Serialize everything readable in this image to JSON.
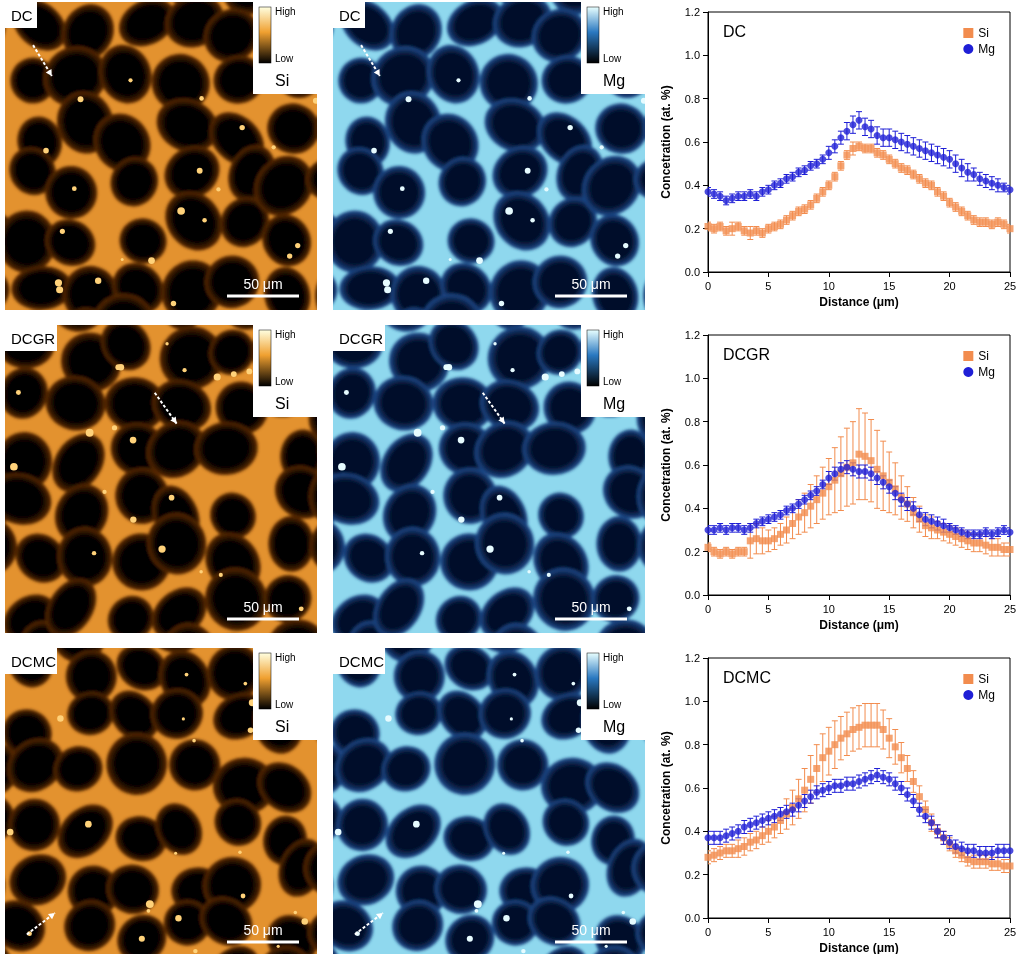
{
  "maps": [
    {
      "sample": "DC",
      "element": "Si",
      "colorbar": [
        "High",
        "Low"
      ],
      "scale_bar": "50 μm"
    },
    {
      "sample": "DC",
      "element": "Mg",
      "colorbar": [
        "High",
        "Low"
      ],
      "scale_bar": "50 μm"
    },
    {
      "sample": "DCGR",
      "element": "Si",
      "colorbar": [
        "High",
        "Low"
      ],
      "scale_bar": "50 μm"
    },
    {
      "sample": "DCGR",
      "element": "Mg",
      "colorbar": [
        "High",
        "Low"
      ],
      "scale_bar": "50 μm"
    },
    {
      "sample": "DCMC",
      "element": "Si",
      "colorbar": [
        "High",
        "Low"
      ],
      "scale_bar": "50 μm"
    },
    {
      "sample": "DCMC",
      "element": "Mg",
      "colorbar": [
        "High",
        "Low"
      ],
      "scale_bar": "50 μm"
    }
  ],
  "chart_data": [
    {
      "type": "scatter",
      "title": "DC",
      "x_label": "Distance (μm)",
      "y_label": "Concetration (at. %)",
      "x": [
        0,
        0.5,
        1,
        1.5,
        2,
        2.5,
        3,
        3.5,
        4,
        4.5,
        5,
        5.5,
        6,
        6.5,
        7,
        7.5,
        8,
        8.5,
        9,
        9.5,
        10,
        10.5,
        11,
        11.5,
        12,
        12.5,
        13,
        13.5,
        14,
        14.5,
        15,
        15.5,
        16,
        16.5,
        17,
        17.5,
        18,
        18.5,
        19,
        19.5,
        20,
        20.5,
        21,
        21.5,
        22,
        22.5,
        23,
        23.5,
        24,
        24.5,
        25
      ],
      "xlim": [
        0,
        25
      ],
      "xticks": [
        0,
        5,
        10,
        15,
        20,
        25
      ],
      "ylim": [
        0,
        1.2
      ],
      "yticks": [
        {
          "value": 0,
          "label": "0.0"
        },
        0.2,
        0.4,
        0.6,
        0.8,
        {
          "value": 1.0,
          "label": "1.0"
        },
        1.2
      ],
      "grid": false,
      "legend": "upper right",
      "series": [
        {
          "name": "Si",
          "color": "#f28c4e",
          "marker": "square",
          "values": [
            0.21,
            0.2,
            0.21,
            0.19,
            0.2,
            0.21,
            0.19,
            0.18,
            0.19,
            0.18,
            0.2,
            0.21,
            0.22,
            0.24,
            0.26,
            0.28,
            0.29,
            0.31,
            0.34,
            0.37,
            0.4,
            0.44,
            0.49,
            0.54,
            0.57,
            0.58,
            0.57,
            0.57,
            0.55,
            0.54,
            0.52,
            0.5,
            0.48,
            0.47,
            0.45,
            0.43,
            0.41,
            0.4,
            0.37,
            0.35,
            0.32,
            0.3,
            0.28,
            0.26,
            0.24,
            0.23,
            0.23,
            0.22,
            0.23,
            0.22,
            0.2
          ],
          "errors": [
            0.02,
            0.02,
            0.02,
            0.02,
            0.03,
            0.02,
            0.02,
            0.03,
            0.02,
            0.02,
            0.02,
            0.02,
            0.02,
            0.02,
            0.02,
            0.02,
            0.02,
            0.02,
            0.02,
            0.02,
            0.02,
            0.02,
            0.02,
            0.02,
            0.03,
            0.02,
            0.02,
            0.02,
            0.02,
            0.02,
            0.02,
            0.02,
            0.02,
            0.02,
            0.02,
            0.02,
            0.02,
            0.02,
            0.02,
            0.02,
            0.02,
            0.02,
            0.02,
            0.02,
            0.02,
            0.02,
            0.02,
            0.02,
            0.02,
            0.02,
            0.02
          ]
        },
        {
          "name": "Mg",
          "color": "#1f1fd6",
          "marker": "circle",
          "values": [
            0.37,
            0.36,
            0.35,
            0.33,
            0.34,
            0.35,
            0.35,
            0.36,
            0.35,
            0.37,
            0.38,
            0.4,
            0.41,
            0.43,
            0.44,
            0.46,
            0.47,
            0.49,
            0.5,
            0.52,
            0.55,
            0.58,
            0.62,
            0.65,
            0.68,
            0.7,
            0.67,
            0.66,
            0.63,
            0.62,
            0.62,
            0.61,
            0.6,
            0.59,
            0.58,
            0.57,
            0.56,
            0.55,
            0.54,
            0.53,
            0.52,
            0.5,
            0.48,
            0.46,
            0.45,
            0.43,
            0.42,
            0.41,
            0.4,
            0.39,
            0.38
          ],
          "errors": [
            0.02,
            0.02,
            0.02,
            0.02,
            0.02,
            0.02,
            0.02,
            0.02,
            0.02,
            0.02,
            0.02,
            0.02,
            0.02,
            0.02,
            0.02,
            0.02,
            0.02,
            0.02,
            0.02,
            0.02,
            0.03,
            0.03,
            0.03,
            0.04,
            0.04,
            0.04,
            0.04,
            0.04,
            0.04,
            0.04,
            0.04,
            0.04,
            0.04,
            0.04,
            0.04,
            0.04,
            0.04,
            0.04,
            0.04,
            0.04,
            0.04,
            0.04,
            0.04,
            0.04,
            0.03,
            0.03,
            0.03,
            0.03,
            0.03,
            0.02,
            0.02
          ]
        }
      ]
    },
    {
      "type": "scatter",
      "title": "DCGR",
      "x_label": "Distance (μm)",
      "y_label": "Concetration (at. %)",
      "x": [
        0,
        0.5,
        1,
        1.5,
        2,
        2.5,
        3,
        3.5,
        4,
        4.5,
        5,
        5.5,
        6,
        6.5,
        7,
        7.5,
        8,
        8.5,
        9,
        9.5,
        10,
        10.5,
        11,
        11.5,
        12,
        12.5,
        13,
        13.5,
        14,
        14.5,
        15,
        15.5,
        16,
        16.5,
        17,
        17.5,
        18,
        18.5,
        19,
        19.5,
        20,
        20.5,
        21,
        21.5,
        22,
        22.5,
        23,
        23.5,
        24,
        24.5,
        25
      ],
      "xlim": [
        0,
        25
      ],
      "xticks": [
        0,
        5,
        10,
        15,
        20,
        25
      ],
      "ylim": [
        0,
        1.2
      ],
      "yticks": [
        {
          "value": 0,
          "label": "0.0"
        },
        0.2,
        0.4,
        0.6,
        0.8,
        {
          "value": 1.0,
          "label": "1.0"
        },
        1.2
      ],
      "grid": false,
      "legend": "upper right",
      "series": [
        {
          "name": "Si",
          "color": "#f28c4e",
          "marker": "square",
          "values": [
            0.22,
            0.2,
            0.19,
            0.2,
            0.19,
            0.2,
            0.2,
            0.25,
            0.26,
            0.25,
            0.25,
            0.26,
            0.28,
            0.3,
            0.33,
            0.36,
            0.38,
            0.41,
            0.44,
            0.47,
            0.5,
            0.53,
            0.56,
            0.59,
            0.61,
            0.65,
            0.64,
            0.62,
            0.58,
            0.55,
            0.52,
            0.49,
            0.45,
            0.42,
            0.38,
            0.35,
            0.32,
            0.31,
            0.3,
            0.29,
            0.28,
            0.27,
            0.26,
            0.25,
            0.24,
            0.24,
            0.23,
            0.22,
            0.22,
            0.21,
            0.21
          ],
          "errors": [
            0.02,
            0.02,
            0.02,
            0.02,
            0.02,
            0.02,
            0.02,
            0.08,
            0.07,
            0.06,
            0.05,
            0.05,
            0.05,
            0.06,
            0.07,
            0.08,
            0.09,
            0.1,
            0.11,
            0.12,
            0.13,
            0.15,
            0.17,
            0.18,
            0.19,
            0.21,
            0.2,
            0.19,
            0.18,
            0.16,
            0.14,
            0.12,
            0.1,
            0.08,
            0.07,
            0.06,
            0.05,
            0.05,
            0.04,
            0.04,
            0.04,
            0.04,
            0.04,
            0.04,
            0.04,
            0.04,
            0.04,
            0.04,
            0.04,
            0.03,
            0.03
          ]
        },
        {
          "name": "Mg",
          "color": "#1f1fd6",
          "marker": "circle",
          "values": [
            0.3,
            0.3,
            0.31,
            0.3,
            0.31,
            0.31,
            0.3,
            0.31,
            0.33,
            0.34,
            0.35,
            0.36,
            0.37,
            0.39,
            0.4,
            0.42,
            0.44,
            0.46,
            0.48,
            0.51,
            0.54,
            0.56,
            0.58,
            0.59,
            0.58,
            0.57,
            0.57,
            0.56,
            0.54,
            0.52,
            0.5,
            0.47,
            0.44,
            0.42,
            0.4,
            0.37,
            0.35,
            0.34,
            0.33,
            0.32,
            0.31,
            0.3,
            0.29,
            0.28,
            0.28,
            0.28,
            0.29,
            0.28,
            0.29,
            0.3,
            0.29
          ],
          "errors": [
            0.02,
            0.02,
            0.02,
            0.02,
            0.02,
            0.02,
            0.02,
            0.02,
            0.02,
            0.02,
            0.02,
            0.02,
            0.02,
            0.02,
            0.02,
            0.02,
            0.02,
            0.02,
            0.02,
            0.02,
            0.03,
            0.03,
            0.03,
            0.03,
            0.03,
            0.03,
            0.03,
            0.03,
            0.03,
            0.03,
            0.03,
            0.03,
            0.03,
            0.03,
            0.03,
            0.03,
            0.03,
            0.03,
            0.03,
            0.03,
            0.02,
            0.02,
            0.02,
            0.02,
            0.02,
            0.02,
            0.02,
            0.02,
            0.02,
            0.02,
            0.02
          ]
        }
      ]
    },
    {
      "type": "scatter",
      "title": "DCMC",
      "x_label": "Distance (μm)",
      "y_label": "Concetration (at. %)",
      "x": [
        0,
        0.5,
        1,
        1.5,
        2,
        2.5,
        3,
        3.5,
        4,
        4.5,
        5,
        5.5,
        6,
        6.5,
        7,
        7.5,
        8,
        8.5,
        9,
        9.5,
        10,
        10.5,
        11,
        11.5,
        12,
        12.5,
        13,
        13.5,
        14,
        14.5,
        15,
        15.5,
        16,
        16.5,
        17,
        17.5,
        18,
        18.5,
        19,
        19.5,
        20,
        20.5,
        21,
        21.5,
        22,
        22.5,
        23,
        23.5,
        24,
        24.5,
        25
      ],
      "xlim": [
        0,
        25
      ],
      "xticks": [
        0,
        5,
        10,
        15,
        20,
        25
      ],
      "ylim": [
        0,
        1.2
      ],
      "yticks": [
        {
          "value": 0,
          "label": "0.0"
        },
        0.2,
        0.4,
        0.6,
        0.8,
        {
          "value": 1.0,
          "label": "1.0"
        },
        1.2
      ],
      "grid": false,
      "legend": "upper right",
      "series": [
        {
          "name": "Si",
          "color": "#f28c4e",
          "marker": "square",
          "values": [
            0.28,
            0.29,
            0.3,
            0.31,
            0.31,
            0.32,
            0.33,
            0.35,
            0.36,
            0.38,
            0.4,
            0.42,
            0.45,
            0.48,
            0.51,
            0.55,
            0.59,
            0.64,
            0.69,
            0.74,
            0.77,
            0.8,
            0.83,
            0.85,
            0.87,
            0.88,
            0.89,
            0.89,
            0.89,
            0.87,
            0.83,
            0.79,
            0.74,
            0.69,
            0.63,
            0.56,
            0.5,
            0.44,
            0.4,
            0.37,
            0.34,
            0.31,
            0.29,
            0.27,
            0.26,
            0.26,
            0.26,
            0.25,
            0.25,
            0.24,
            0.24
          ],
          "errors": [
            0.03,
            0.03,
            0.03,
            0.03,
            0.03,
            0.04,
            0.04,
            0.04,
            0.04,
            0.04,
            0.05,
            0.05,
            0.06,
            0.07,
            0.08,
            0.09,
            0.1,
            0.11,
            0.11,
            0.11,
            0.11,
            0.11,
            0.1,
            0.1,
            0.1,
            0.1,
            0.1,
            0.1,
            0.1,
            0.09,
            0.09,
            0.08,
            0.07,
            0.06,
            0.05,
            0.05,
            0.04,
            0.04,
            0.03,
            0.03,
            0.03,
            0.03,
            0.03,
            0.03,
            0.03,
            0.03,
            0.03,
            0.03,
            0.03,
            0.03,
            0.03
          ]
        },
        {
          "name": "Mg",
          "color": "#1f1fd6",
          "marker": "circle",
          "values": [
            0.37,
            0.37,
            0.37,
            0.38,
            0.39,
            0.4,
            0.42,
            0.43,
            0.44,
            0.45,
            0.46,
            0.47,
            0.48,
            0.49,
            0.5,
            0.52,
            0.54,
            0.56,
            0.58,
            0.59,
            0.6,
            0.61,
            0.61,
            0.62,
            0.62,
            0.63,
            0.64,
            0.65,
            0.66,
            0.65,
            0.64,
            0.62,
            0.6,
            0.57,
            0.54,
            0.5,
            0.47,
            0.44,
            0.4,
            0.37,
            0.35,
            0.33,
            0.32,
            0.31,
            0.31,
            0.3,
            0.3,
            0.3,
            0.31,
            0.31,
            0.31
          ],
          "errors": [
            0.03,
            0.03,
            0.03,
            0.03,
            0.03,
            0.03,
            0.03,
            0.03,
            0.03,
            0.03,
            0.03,
            0.03,
            0.03,
            0.03,
            0.03,
            0.03,
            0.03,
            0.03,
            0.03,
            0.03,
            0.03,
            0.03,
            0.03,
            0.03,
            0.03,
            0.03,
            0.03,
            0.03,
            0.03,
            0.03,
            0.03,
            0.03,
            0.03,
            0.03,
            0.03,
            0.03,
            0.03,
            0.03,
            0.03,
            0.03,
            0.03,
            0.03,
            0.03,
            0.03,
            0.03,
            0.03,
            0.03,
            0.03,
            0.03,
            0.03,
            0.03
          ]
        }
      ]
    }
  ]
}
